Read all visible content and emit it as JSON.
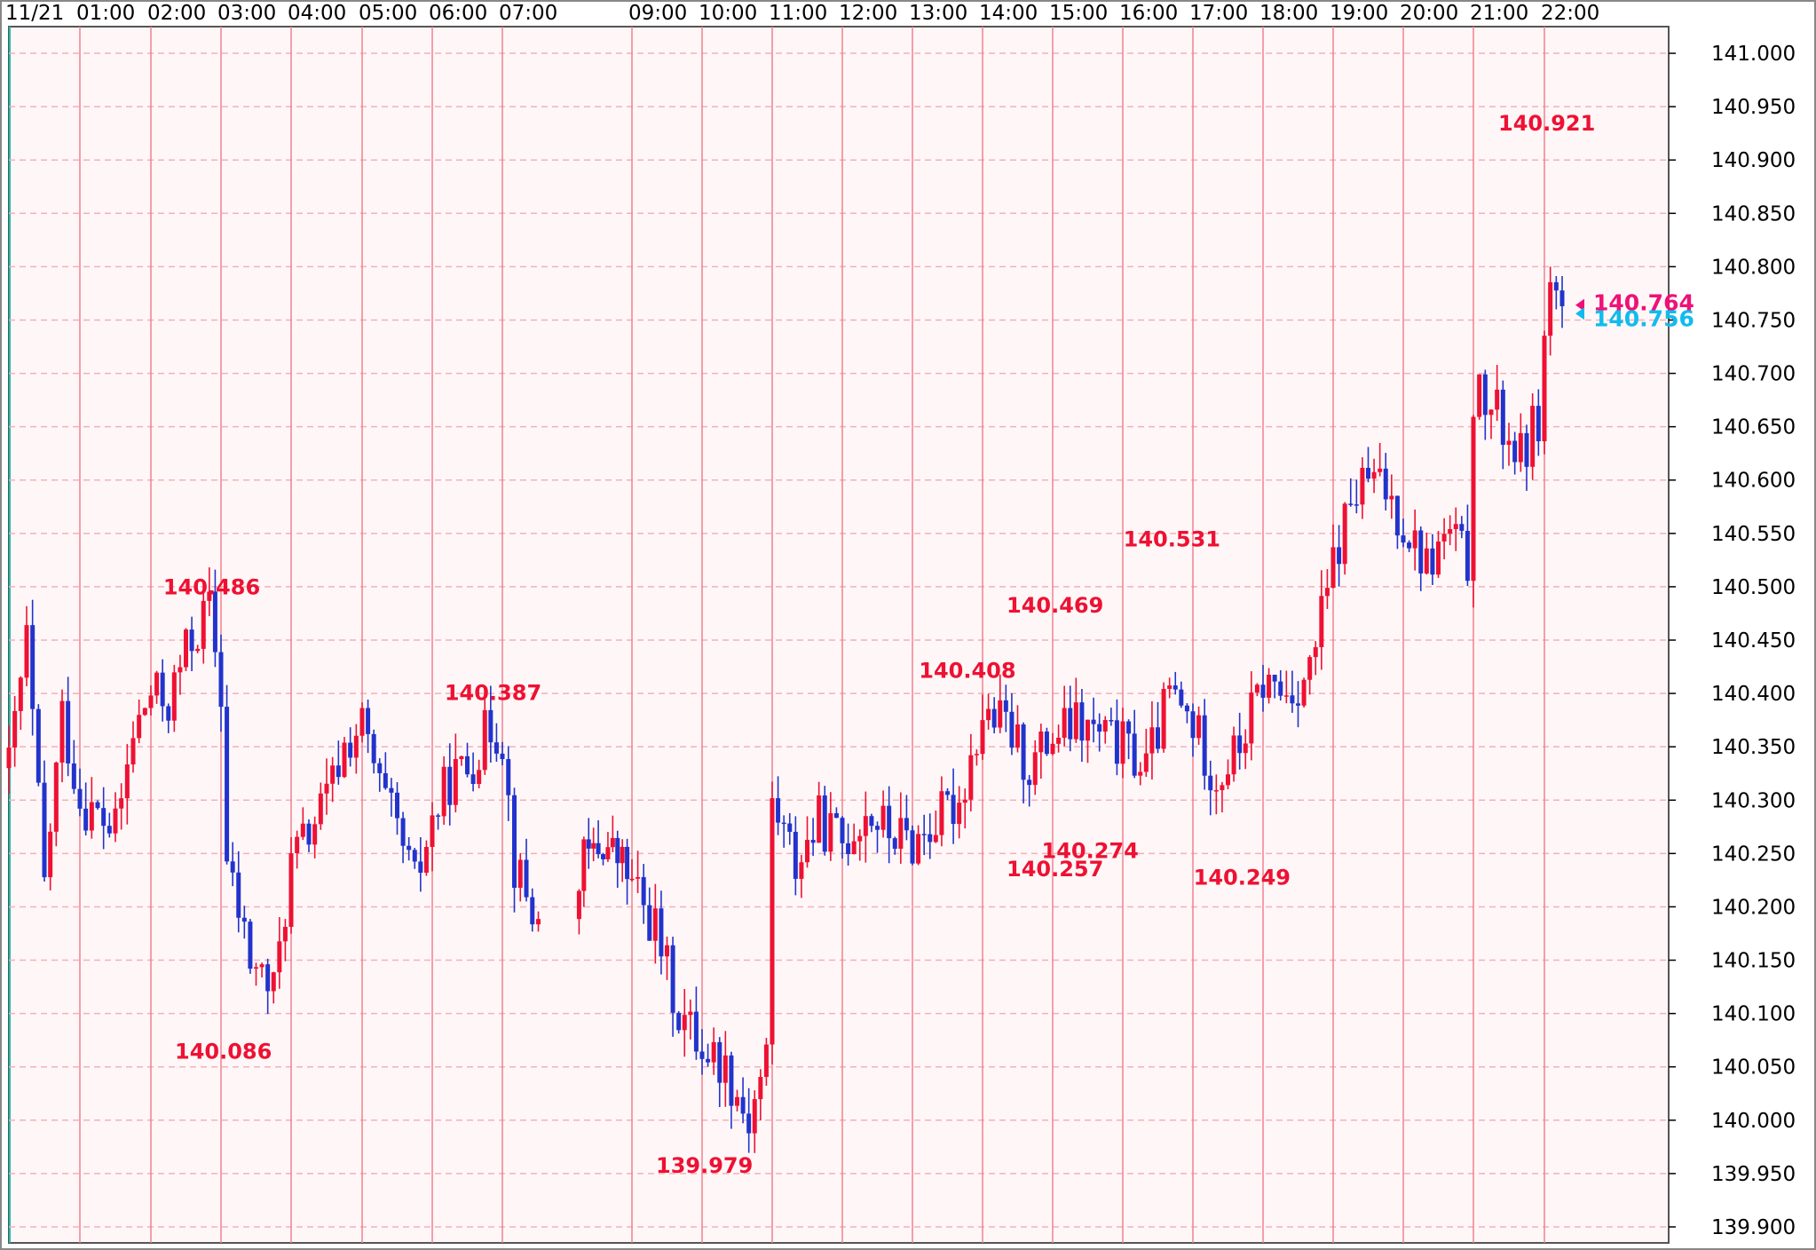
{
  "chart_data": {
    "type": "candlestick",
    "instrument_period": "1-minute-ish intraday, one trading day",
    "time_axis": {
      "date_label": "11/21",
      "ticks": [
        "01:00",
        "02:00",
        "03:00",
        "04:00",
        "05:00",
        "06:00",
        "07:00",
        "09:00",
        "10:00",
        "11:00",
        "12:00",
        "13:00",
        "14:00",
        "15:00",
        "16:00",
        "17:00",
        "18:00",
        "19:00",
        "20:00",
        "21:00",
        "22:00"
      ]
    },
    "price_axis": {
      "ylim": [
        139.885,
        141.025
      ],
      "ticks": [
        "141.000",
        "140.950",
        "140.900",
        "140.850",
        "140.800",
        "140.750",
        "140.700",
        "140.650",
        "140.600",
        "140.550",
        "140.500",
        "140.450",
        "140.400",
        "140.350",
        "140.300",
        "140.250",
        "140.200",
        "140.150",
        "140.100",
        "140.050",
        "140.000",
        "139.950",
        "139.900"
      ]
    },
    "grid": true,
    "colors": {
      "background": "#fff7f7",
      "up_candle": "#ee1133",
      "down_candle": "#2233cc",
      "vertical_grid": "#f08090",
      "horizontal_grid": "#f4b0b8",
      "label": "#ee1133",
      "ask_marker": "#ee1177",
      "bid_marker": "#11bbee"
    },
    "annotations": [
      {
        "text": "140.486",
        "time": "02:50",
        "price": 140.486
      },
      {
        "text": "140.086",
        "time": "03:00",
        "price": 140.086
      },
      {
        "text": "140.387",
        "time": "06:50",
        "price": 140.387
      },
      {
        "text": "139.979",
        "time": "10:00",
        "price": 139.979
      },
      {
        "text": "140.408",
        "time": "13:45",
        "price": 140.408
      },
      {
        "text": "140.469",
        "time": "15:00",
        "price": 140.469
      },
      {
        "text": "140.257",
        "time": "15:00",
        "price": 140.257
      },
      {
        "text": "140.274",
        "time": "15:30",
        "price": 140.274
      },
      {
        "text": "140.531",
        "time": "16:40",
        "price": 140.531
      },
      {
        "text": "140.249",
        "time": "17:40",
        "price": 140.249
      },
      {
        "text": "140.921",
        "time": "22:00",
        "price": 140.921
      }
    ],
    "last_prices": [
      {
        "name": "ask",
        "value": "140.764"
      },
      {
        "name": "bid",
        "value": "140.756"
      }
    ],
    "path_points": [
      [
        "00:00",
        140.33
      ],
      [
        "00:15",
        140.45
      ],
      [
        "00:30",
        140.22
      ],
      [
        "00:45",
        140.38
      ],
      [
        "01:00",
        140.3
      ],
      [
        "01:30",
        140.27
      ],
      [
        "01:45",
        140.36
      ],
      [
        "02:00",
        140.4
      ],
      [
        "02:15",
        140.39
      ],
      [
        "02:30",
        140.44
      ],
      [
        "02:50",
        140.48
      ],
      [
        "03:00",
        140.4
      ],
      [
        "03:05",
        140.24
      ],
      [
        "03:25",
        140.15
      ],
      [
        "03:45",
        140.12
      ],
      [
        "04:00",
        140.24
      ],
      [
        "04:15",
        140.27
      ],
      [
        "04:30",
        140.3
      ],
      [
        "04:45",
        140.35
      ],
      [
        "05:00",
        140.37
      ],
      [
        "05:15",
        140.31
      ],
      [
        "05:30",
        140.27
      ],
      [
        "05:45",
        140.22
      ],
      [
        "06:00",
        140.28
      ],
      [
        "06:15",
        140.32
      ],
      [
        "06:30",
        140.33
      ],
      [
        "06:50",
        140.37
      ],
      [
        "07:00",
        140.36
      ],
      [
        "07:10",
        140.24
      ],
      [
        "07:30",
        140.18
      ],
      [
        "07:50",
        140.22
      ],
      [
        "08:10",
        140.24
      ],
      [
        "08:30",
        140.26
      ],
      [
        "08:50",
        140.24
      ],
      [
        "09:00",
        140.22
      ],
      [
        "09:20",
        140.18
      ],
      [
        "09:40",
        140.1
      ],
      [
        "10:00",
        140.07
      ],
      [
        "10:20",
        140.05
      ],
      [
        "10:40",
        140.0
      ],
      [
        "10:55",
        140.06
      ],
      [
        "11:00",
        140.3
      ],
      [
        "11:20",
        140.24
      ],
      [
        "11:40",
        140.28
      ],
      [
        "12:00",
        140.26
      ],
      [
        "12:20",
        140.29
      ],
      [
        "12:40",
        140.27
      ],
      [
        "13:00",
        140.26
      ],
      [
        "13:20",
        140.28
      ],
      [
        "13:40",
        140.3
      ],
      [
        "14:00",
        140.38
      ],
      [
        "14:20",
        140.37
      ],
      [
        "14:40",
        140.33
      ],
      [
        "15:00",
        140.36
      ],
      [
        "15:20",
        140.37
      ],
      [
        "15:40",
        140.36
      ],
      [
        "16:00",
        140.35
      ],
      [
        "16:20",
        140.33
      ],
      [
        "16:40",
        140.4
      ],
      [
        "17:00",
        140.37
      ],
      [
        "17:20",
        140.32
      ],
      [
        "17:40",
        140.35
      ],
      [
        "18:00",
        140.41
      ],
      [
        "18:20",
        140.4
      ],
      [
        "18:40",
        140.42
      ],
      [
        "19:00",
        140.52
      ],
      [
        "19:15",
        140.58
      ],
      [
        "19:30",
        140.6
      ],
      [
        "19:45",
        140.59
      ],
      [
        "20:00",
        140.56
      ],
      [
        "20:20",
        140.52
      ],
      [
        "20:40",
        140.55
      ],
      [
        "20:55",
        140.52
      ],
      [
        "21:00",
        140.68
      ],
      [
        "21:20",
        140.66
      ],
      [
        "21:40",
        140.62
      ],
      [
        "21:55",
        140.66
      ],
      [
        "22:05",
        140.79
      ],
      [
        "22:15",
        140.76
      ]
    ]
  }
}
